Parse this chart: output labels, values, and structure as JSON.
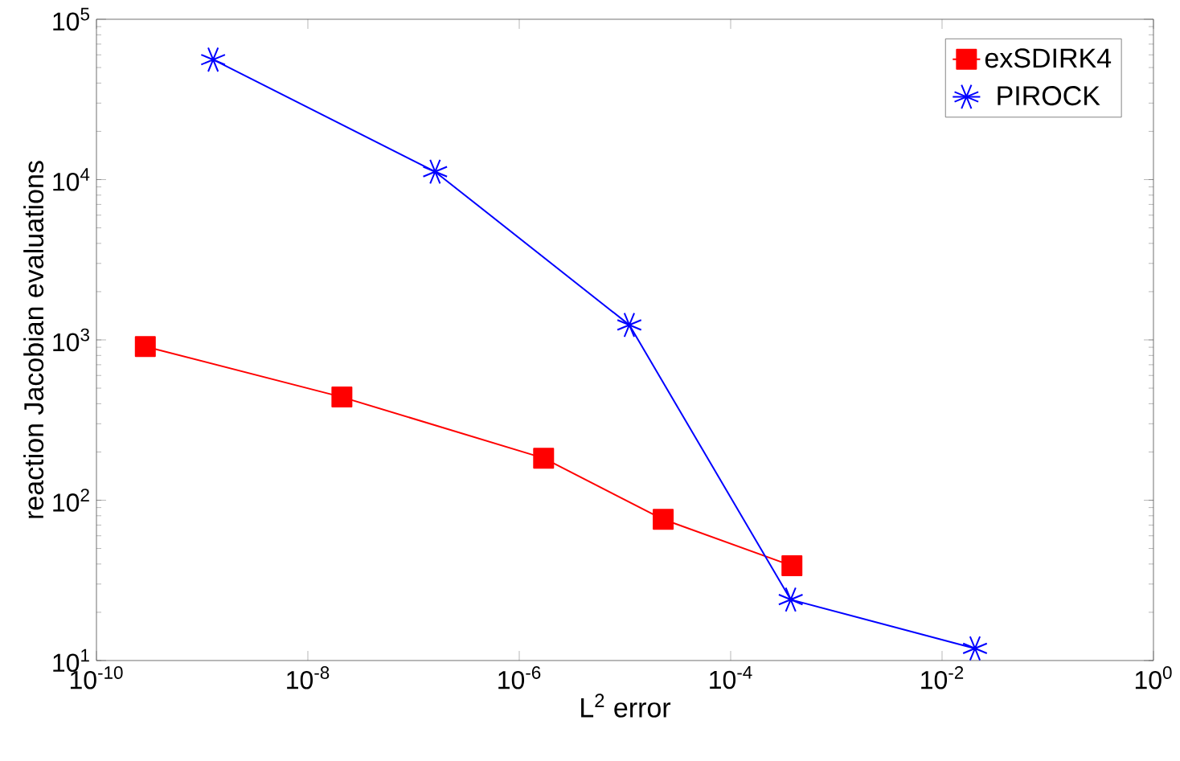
{
  "chart_data": {
    "type": "line",
    "xlabel": "L$^{2}$ error",
    "ylabel": "reaction Jacobian evaluations",
    "log": "xy",
    "legend": "top right",
    "grid": false,
    "xlim": [
      1e-10,
      1
    ],
    "ylim": [
      10,
      100000
    ],
    "xticks": [
      {
        "value": 1e-10,
        "label": "10$^{-10}$"
      },
      {
        "value": 1e-08,
        "label": "10$^{-8}$"
      },
      {
        "value": 1e-06,
        "label": "10$^{-6}$"
      },
      {
        "value": 0.0001,
        "label": "10$^{-4}$"
      },
      {
        "value": 0.01,
        "label": "10$^{-2}$"
      },
      {
        "value": 1,
        "label": "10$^{0}$"
      }
    ],
    "yticks": [
      {
        "value": 10,
        "label": "10$^{1}$"
      },
      {
        "value": 100,
        "label": "10$^{2}$"
      },
      {
        "value": 1000,
        "label": "10$^{3}$"
      },
      {
        "value": 10000,
        "label": "10$^{4}$"
      },
      {
        "value": 100000,
        "label": "10$^{5}$"
      }
    ],
    "series": [
      {
        "name": "exSDIRK4",
        "color": "#ff0000",
        "marker": "square",
        "x": [
          2.9e-10,
          2.1e-08,
          1.7e-06,
          2.3e-05,
          0.00038
        ],
        "values": [
          910,
          440,
          183,
          76,
          39
        ]
      },
      {
        "name": "PIROCK",
        "color": "#0000ff",
        "marker": "cross",
        "x": [
          1.27e-09,
          1.6e-07,
          1.1e-05,
          0.00037,
          0.0205
        ],
        "values": [
          56000,
          11200,
          1240,
          24,
          11.9
        ]
      }
    ]
  }
}
